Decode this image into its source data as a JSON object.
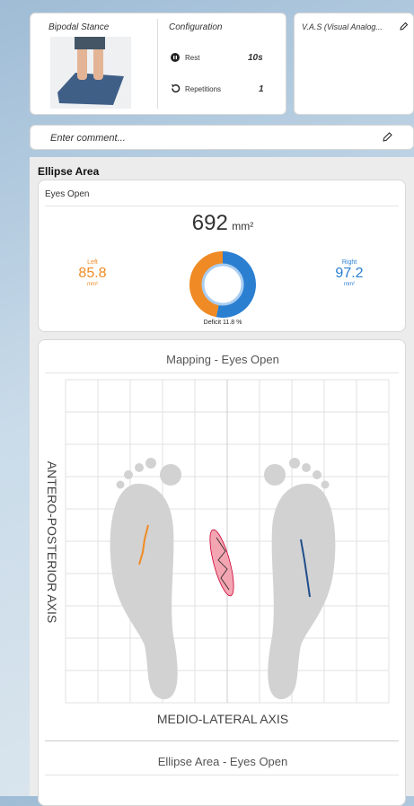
{
  "exercise": {
    "title": "Bipodal Stance"
  },
  "configuration": {
    "title": "Configuration",
    "rest_label": "Rest",
    "rest_value": "10s",
    "repetitions_label": "Repetitions",
    "repetitions_value": "1"
  },
  "vas": {
    "title": "V.A.S (Visual Analog..."
  },
  "comment": {
    "placeholder": "Enter comment..."
  },
  "section": {
    "title": "Ellipse Area"
  },
  "ellipse_card": {
    "title": "Eyes Open",
    "total": "692",
    "total_unit": "mm²",
    "left": {
      "label": "Left",
      "value": "85.8",
      "unit": "mm²"
    },
    "right": {
      "label": "Right",
      "value": "97.2",
      "unit": "mm²"
    },
    "deficit": "Deficit 11.8 %"
  },
  "mapping": {
    "title": "Mapping - Eyes Open",
    "y_axis": "ANTERO-POSTERIOR AXIS",
    "x_axis": "MEDIO-LATERAL AXIS"
  },
  "next_card": {
    "title": "Ellipse Area - Eyes Open"
  }
}
